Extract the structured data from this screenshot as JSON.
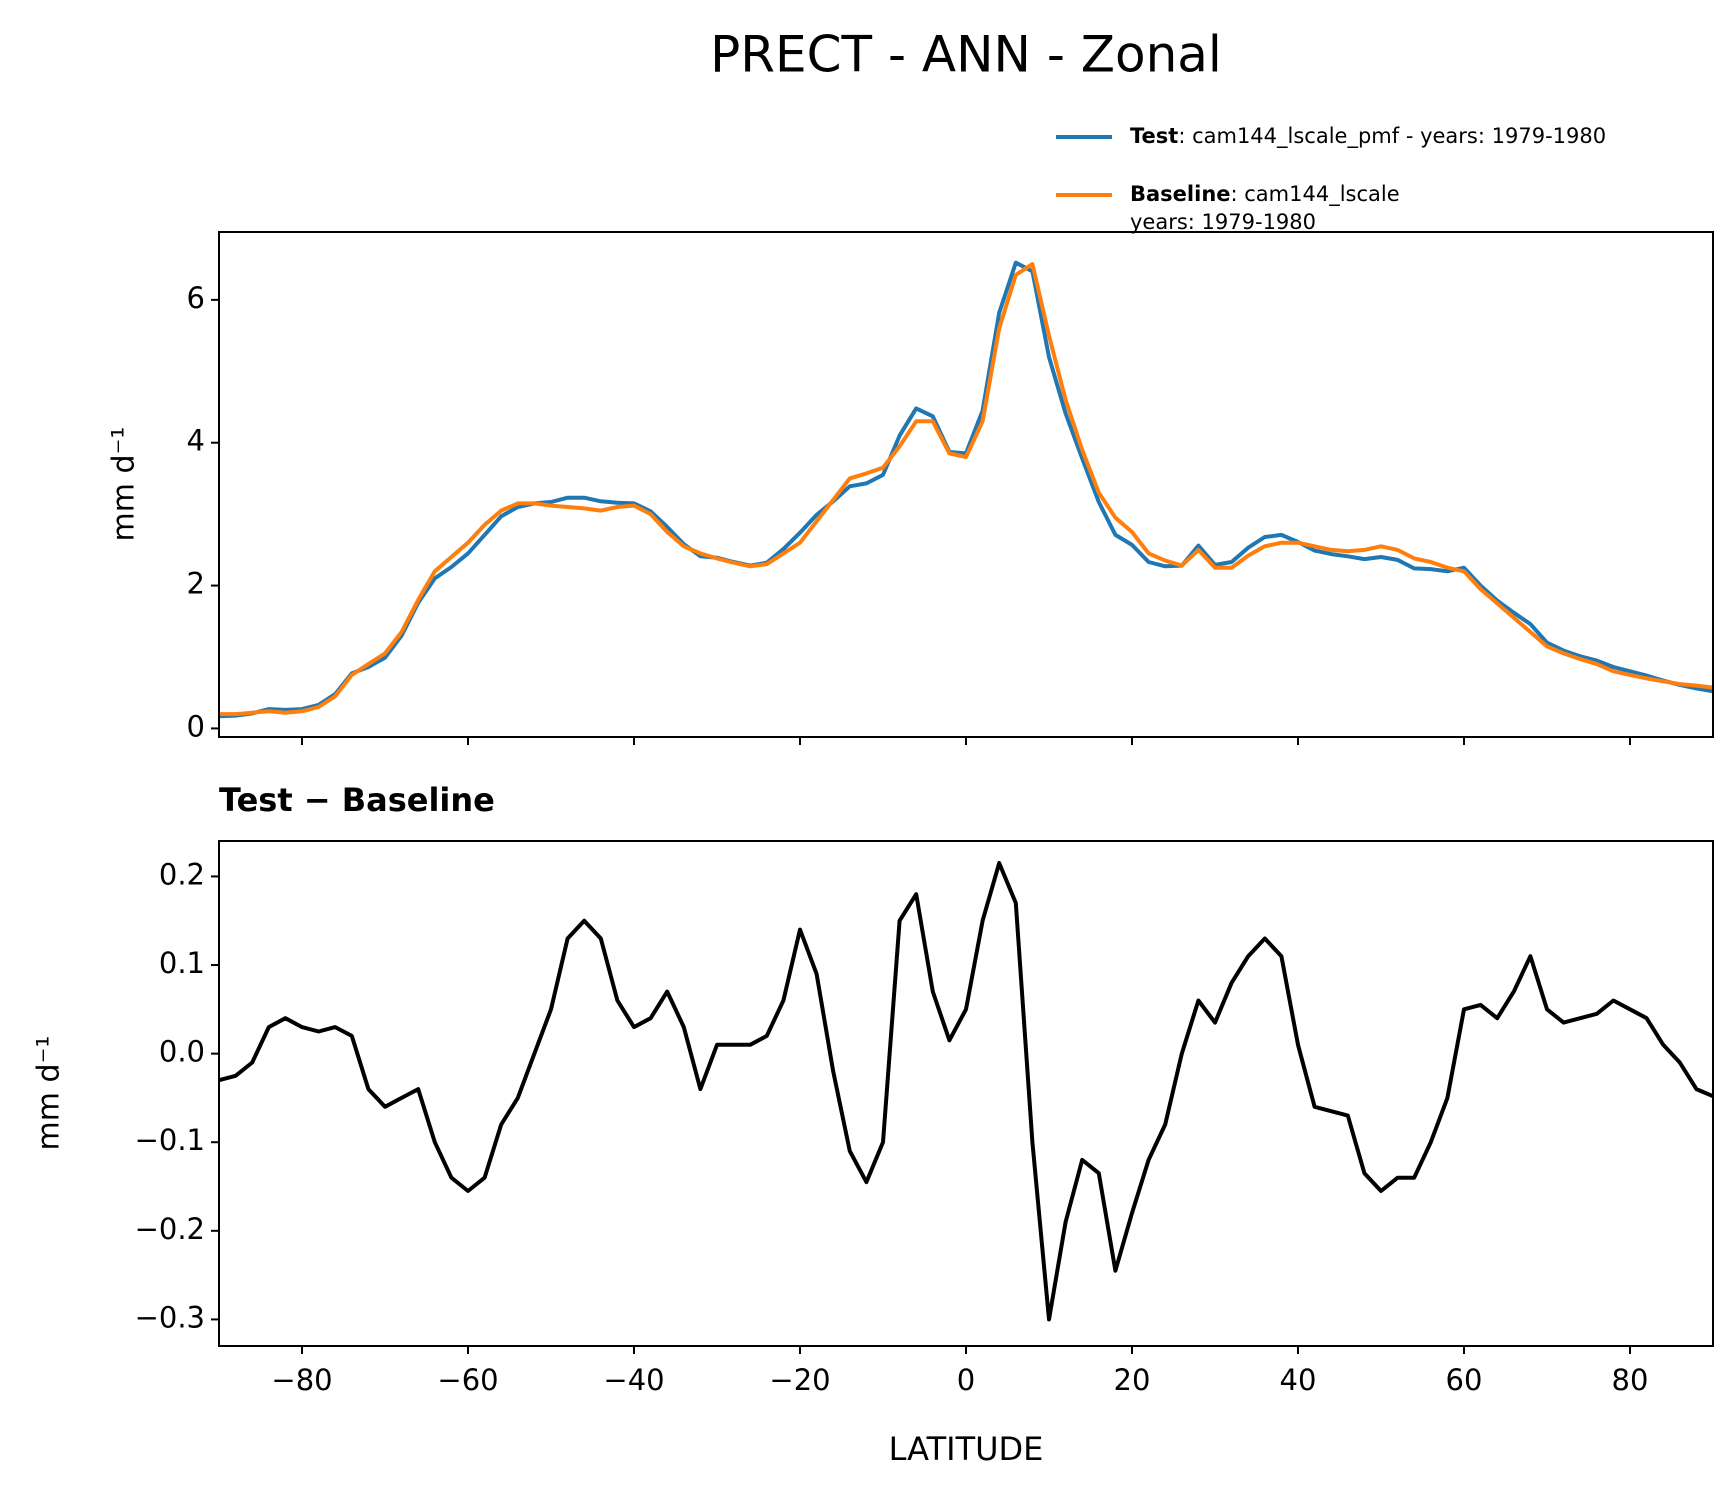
{
  "chart_data": [
    {
      "type": "line",
      "title": "PRECT - ANN - Zonal",
      "ylabel": "mm d⁻¹",
      "xlim": [
        -90,
        90
      ],
      "ylim": [
        -0.12,
        6.95
      ],
      "yticks": [
        0,
        2,
        4,
        6
      ],
      "legend": "top-right",
      "x": [
        -90,
        -88,
        -86,
        -84,
        -82,
        -80,
        -78,
        -76,
        -74,
        -72,
        -70,
        -68,
        -66,
        -64,
        -62,
        -60,
        -58,
        -56,
        -54,
        -52,
        -50,
        -48,
        -46,
        -44,
        -42,
        -40,
        -38,
        -36,
        -34,
        -32,
        -30,
        -28,
        -26,
        -24,
        -22,
        -20,
        -18,
        -16,
        -14,
        -12,
        -10,
        -8,
        -6,
        -4,
        -2,
        0,
        2,
        4,
        6,
        8,
        10,
        12,
        14,
        16,
        18,
        20,
        22,
        24,
        26,
        28,
        30,
        32,
        34,
        36,
        38,
        40,
        42,
        44,
        46,
        48,
        50,
        52,
        54,
        56,
        58,
        60,
        62,
        64,
        66,
        68,
        70,
        72,
        74,
        76,
        78,
        80,
        82,
        84,
        86,
        88,
        90
      ],
      "series": [
        {
          "name": "Test",
          "description": ": cam144_lscale_pmf - years: 1979-1980",
          "color": "#1f77b4",
          "values": [
            0.17,
            0.18,
            0.21,
            0.27,
            0.26,
            0.27,
            0.33,
            0.48,
            0.77,
            0.86,
            0.99,
            1.3,
            1.76,
            2.1,
            2.26,
            2.45,
            2.71,
            2.97,
            3.1,
            3.15,
            3.17,
            3.23,
            3.23,
            3.18,
            3.16,
            3.15,
            3.04,
            2.82,
            2.58,
            2.41,
            2.39,
            2.33,
            2.28,
            2.32,
            2.51,
            2.74,
            2.99,
            3.18,
            3.39,
            3.43,
            3.55,
            4.1,
            4.48,
            4.37,
            3.87,
            3.85,
            4.45,
            5.82,
            6.52,
            6.4,
            5.2,
            4.41,
            3.78,
            3.17,
            2.71,
            2.57,
            2.33,
            2.27,
            2.28,
            2.56,
            2.29,
            2.33,
            2.53,
            2.68,
            2.71,
            2.61,
            2.49,
            2.44,
            2.41,
            2.37,
            2.4,
            2.36,
            2.24,
            2.23,
            2.2,
            2.25,
            2.0,
            1.79,
            1.62,
            1.46,
            1.2,
            1.09,
            1.01,
            0.95,
            0.86,
            0.8,
            0.74,
            0.67,
            0.61,
            0.56,
            0.52
          ]
        },
        {
          "name": "Baseline",
          "description": [
            ": cam144_lscale",
            "years: 1979-1980"
          ],
          "color": "#ff7f0e",
          "values": [
            0.2,
            0.2,
            0.22,
            0.24,
            0.22,
            0.24,
            0.3,
            0.45,
            0.75,
            0.9,
            1.05,
            1.35,
            1.8,
            2.2,
            2.4,
            2.6,
            2.85,
            3.05,
            3.15,
            3.15,
            3.12,
            3.1,
            3.08,
            3.05,
            3.1,
            3.12,
            3.0,
            2.75,
            2.55,
            2.45,
            2.38,
            2.32,
            2.27,
            2.3,
            2.45,
            2.6,
            2.9,
            3.2,
            3.5,
            3.57,
            3.65,
            3.95,
            4.3,
            4.3,
            3.85,
            3.8,
            4.3,
            5.6,
            6.35,
            6.5,
            5.5,
            4.6,
            3.9,
            3.3,
            2.95,
            2.75,
            2.45,
            2.35,
            2.28,
            2.5,
            2.25,
            2.25,
            2.42,
            2.55,
            2.6,
            2.6,
            2.55,
            2.5,
            2.48,
            2.5,
            2.55,
            2.5,
            2.38,
            2.33,
            2.25,
            2.2,
            1.95,
            1.75,
            1.55,
            1.35,
            1.15,
            1.05,
            0.97,
            0.9,
            0.8,
            0.75,
            0.7,
            0.66,
            0.62,
            0.6,
            0.57
          ]
        }
      ]
    },
    {
      "type": "line",
      "title": "Test − Baseline",
      "ylabel": "mm d⁻¹",
      "xlabel": "LATITUDE",
      "xlim": [
        -90,
        90
      ],
      "ylim": [
        -0.33,
        0.24
      ],
      "xticks": [
        {
          "value": -80,
          "label": "−80"
        },
        {
          "value": -60,
          "label": "−60"
        },
        {
          "value": -40,
          "label": "−40"
        },
        {
          "value": -20,
          "label": "−20"
        },
        0,
        20,
        40,
        60,
        80
      ],
      "yticks": [
        0.2,
        0.1,
        {
          "value": 0,
          "label": "0.0"
        },
        {
          "value": -0.1,
          "label": "−0.1"
        },
        {
          "value": -0.2,
          "label": "−0.2"
        },
        {
          "value": -0.3,
          "label": "−0.3"
        }
      ],
      "x": [
        -90,
        -88,
        -86,
        -84,
        -82,
        -80,
        -78,
        -76,
        -74,
        -72,
        -70,
        -68,
        -66,
        -64,
        -62,
        -60,
        -58,
        -56,
        -54,
        -52,
        -50,
        -48,
        -46,
        -44,
        -42,
        -40,
        -38,
        -36,
        -34,
        -32,
        -30,
        -28,
        -26,
        -24,
        -22,
        -20,
        -18,
        -16,
        -14,
        -12,
        -10,
        -8,
        -6,
        -4,
        -2,
        0,
        2,
        4,
        6,
        8,
        10,
        12,
        14,
        16,
        18,
        20,
        22,
        24,
        26,
        28,
        30,
        32,
        34,
        36,
        38,
        40,
        42,
        44,
        46,
        48,
        50,
        52,
        54,
        56,
        58,
        60,
        62,
        64,
        66,
        68,
        70,
        72,
        74,
        76,
        78,
        80,
        82,
        84,
        86,
        88,
        90
      ],
      "series": [
        {
          "color": "#000000",
          "values": [
            -0.03,
            -0.025,
            -0.01,
            0.03,
            0.04,
            0.03,
            0.025,
            0.03,
            0.02,
            -0.04,
            -0.06,
            -0.05,
            -0.04,
            -0.1,
            -0.14,
            -0.155,
            -0.14,
            -0.08,
            -0.05,
            0.0,
            0.05,
            0.13,
            0.15,
            0.13,
            0.06,
            0.03,
            0.04,
            0.07,
            0.03,
            -0.04,
            0.01,
            0.01,
            0.01,
            0.02,
            0.06,
            0.14,
            0.09,
            -0.02,
            -0.11,
            -0.145,
            -0.1,
            0.15,
            0.18,
            0.07,
            0.015,
            0.05,
            0.15,
            0.215,
            0.17,
            -0.1,
            -0.3,
            -0.19,
            -0.12,
            -0.135,
            -0.245,
            -0.18,
            -0.12,
            -0.08,
            0.0,
            0.06,
            0.035,
            0.08,
            0.11,
            0.13,
            0.11,
            0.01,
            -0.06,
            -0.065,
            -0.07,
            -0.135,
            -0.155,
            -0.14,
            -0.14,
            -0.1,
            -0.05,
            0.05,
            0.055,
            0.04,
            0.07,
            0.11,
            0.05,
            0.035,
            0.04,
            0.045,
            0.06,
            0.05,
            0.04,
            0.01,
            -0.01,
            -0.04,
            -0.048
          ]
        }
      ]
    }
  ]
}
